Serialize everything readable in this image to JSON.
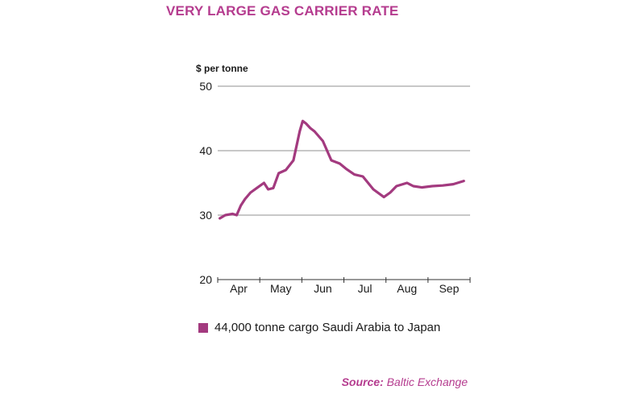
{
  "colors": {
    "accent": "#b53c8f",
    "line": "#a33a7f",
    "grid": "#b5b5b5",
    "text": "#1a1a1a"
  },
  "chart_data": {
    "type": "line",
    "title": "VERY LARGE GAS CARRIER RATE",
    "ylabel": "$ per tonne",
    "xlabel": "",
    "ylim": [
      20,
      50
    ],
    "yticks": [
      20,
      30,
      40,
      50
    ],
    "gridlines": [
      30,
      40,
      50
    ],
    "grid": true,
    "months": [
      "Apr",
      "May",
      "Jun",
      "Jul",
      "Aug",
      "Sep"
    ],
    "xlim": [
      0,
      6
    ],
    "series": [
      {
        "name": "44,000 tonne cargo Saudi Arabia to Japan",
        "x": [
          0.05,
          0.18,
          0.35,
          0.45,
          0.55,
          0.65,
          0.78,
          0.95,
          1.1,
          1.2,
          1.32,
          1.45,
          1.62,
          1.8,
          1.95,
          2.02,
          2.1,
          2.2,
          2.3,
          2.5,
          2.7,
          2.9,
          3.05,
          3.25,
          3.45,
          3.7,
          3.95,
          4.1,
          4.25,
          4.5,
          4.65,
          4.85,
          5.1,
          5.35,
          5.6,
          5.85
        ],
        "values": [
          29.5,
          30.0,
          30.2,
          30.0,
          31.5,
          32.5,
          33.5,
          34.3,
          35.0,
          34.0,
          34.2,
          36.5,
          37.0,
          38.5,
          43.0,
          44.6,
          44.2,
          43.5,
          43.0,
          41.5,
          38.5,
          38.0,
          37.2,
          36.3,
          36.0,
          34.0,
          32.8,
          33.5,
          34.5,
          35.0,
          34.5,
          34.3,
          34.5,
          34.6,
          34.8,
          35.3
        ]
      }
    ]
  },
  "source": {
    "prefix": "Source:",
    "name": "Baltic Exchange"
  }
}
